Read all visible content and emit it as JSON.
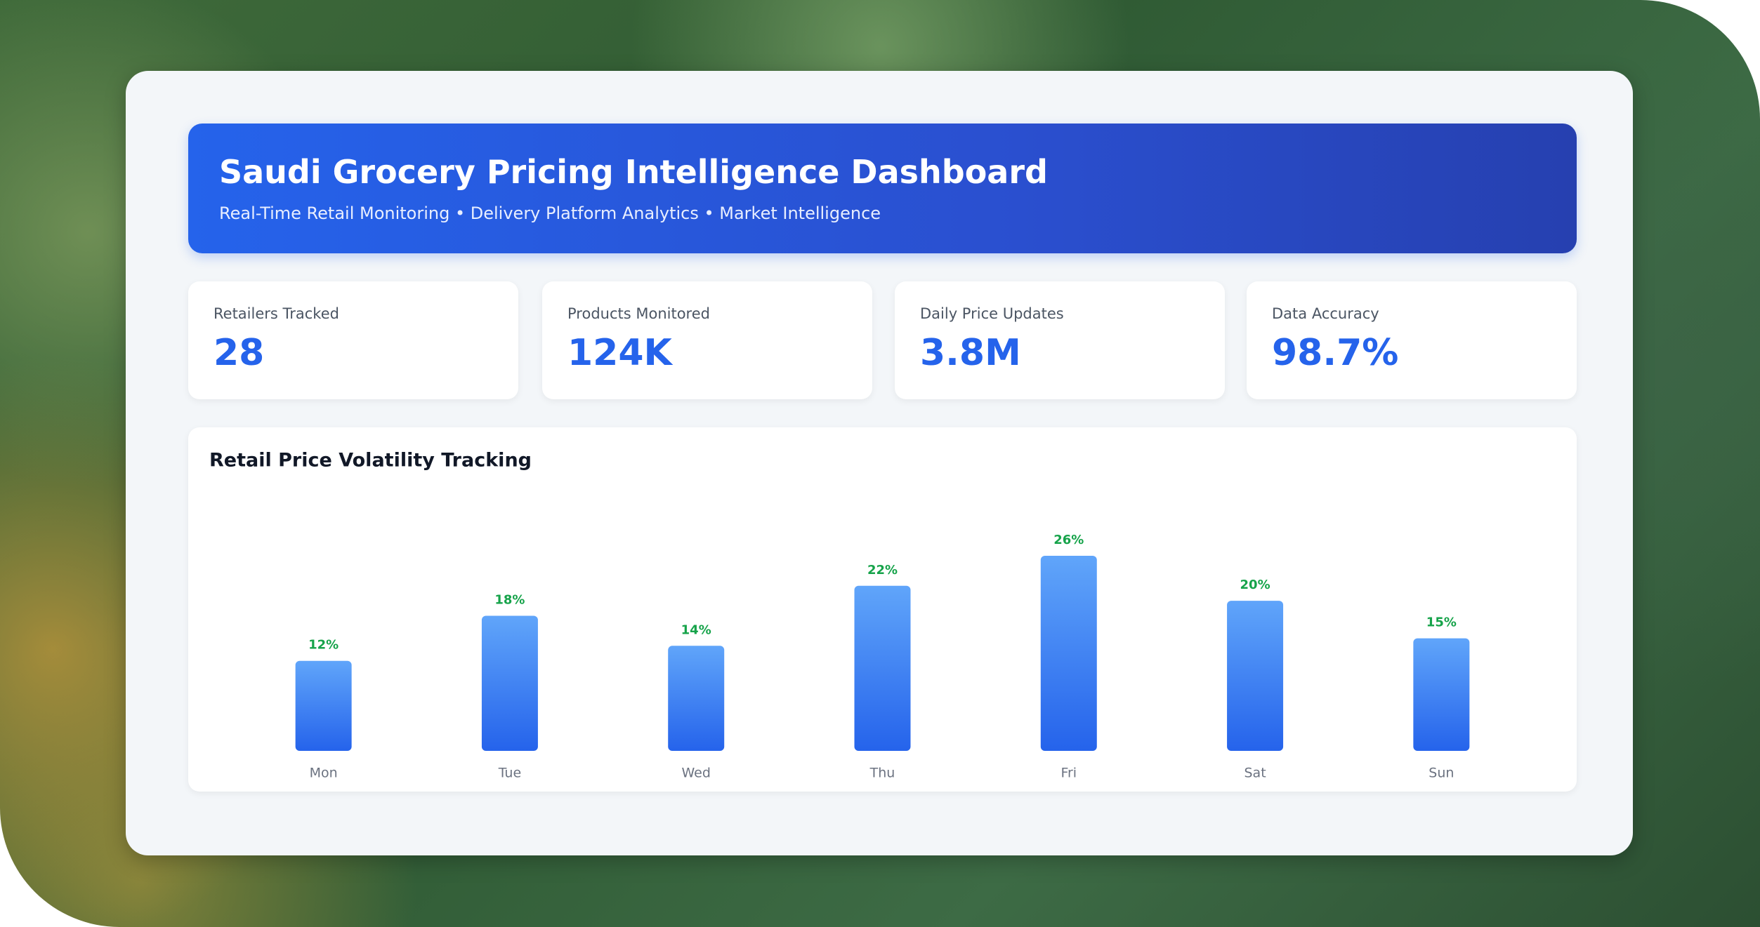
{
  "header": {
    "title": "Saudi Grocery Pricing Intelligence Dashboard",
    "subtitle": "Real-Time Retail Monitoring • Delivery Platform Analytics • Market Intelligence"
  },
  "kpis": [
    {
      "label": "Retailers Tracked",
      "value": "28"
    },
    {
      "label": "Products Monitored",
      "value": "124K"
    },
    {
      "label": "Daily Price Updates",
      "value": "3.8M"
    },
    {
      "label": "Data Accuracy",
      "value": "98.7%"
    }
  ],
  "chart_data": {
    "type": "bar",
    "title": "Retail Price Volatility Tracking",
    "categories": [
      "Mon",
      "Tue",
      "Wed",
      "Thu",
      "Fri",
      "Sat",
      "Sun"
    ],
    "values": [
      12,
      18,
      14,
      22,
      26,
      20,
      15
    ],
    "value_labels": [
      "12%",
      "18%",
      "14%",
      "22%",
      "26%",
      "20%",
      "15%"
    ],
    "ylim": [
      0,
      26
    ],
    "color": "#2563eb",
    "label_color": "#16a34a"
  }
}
